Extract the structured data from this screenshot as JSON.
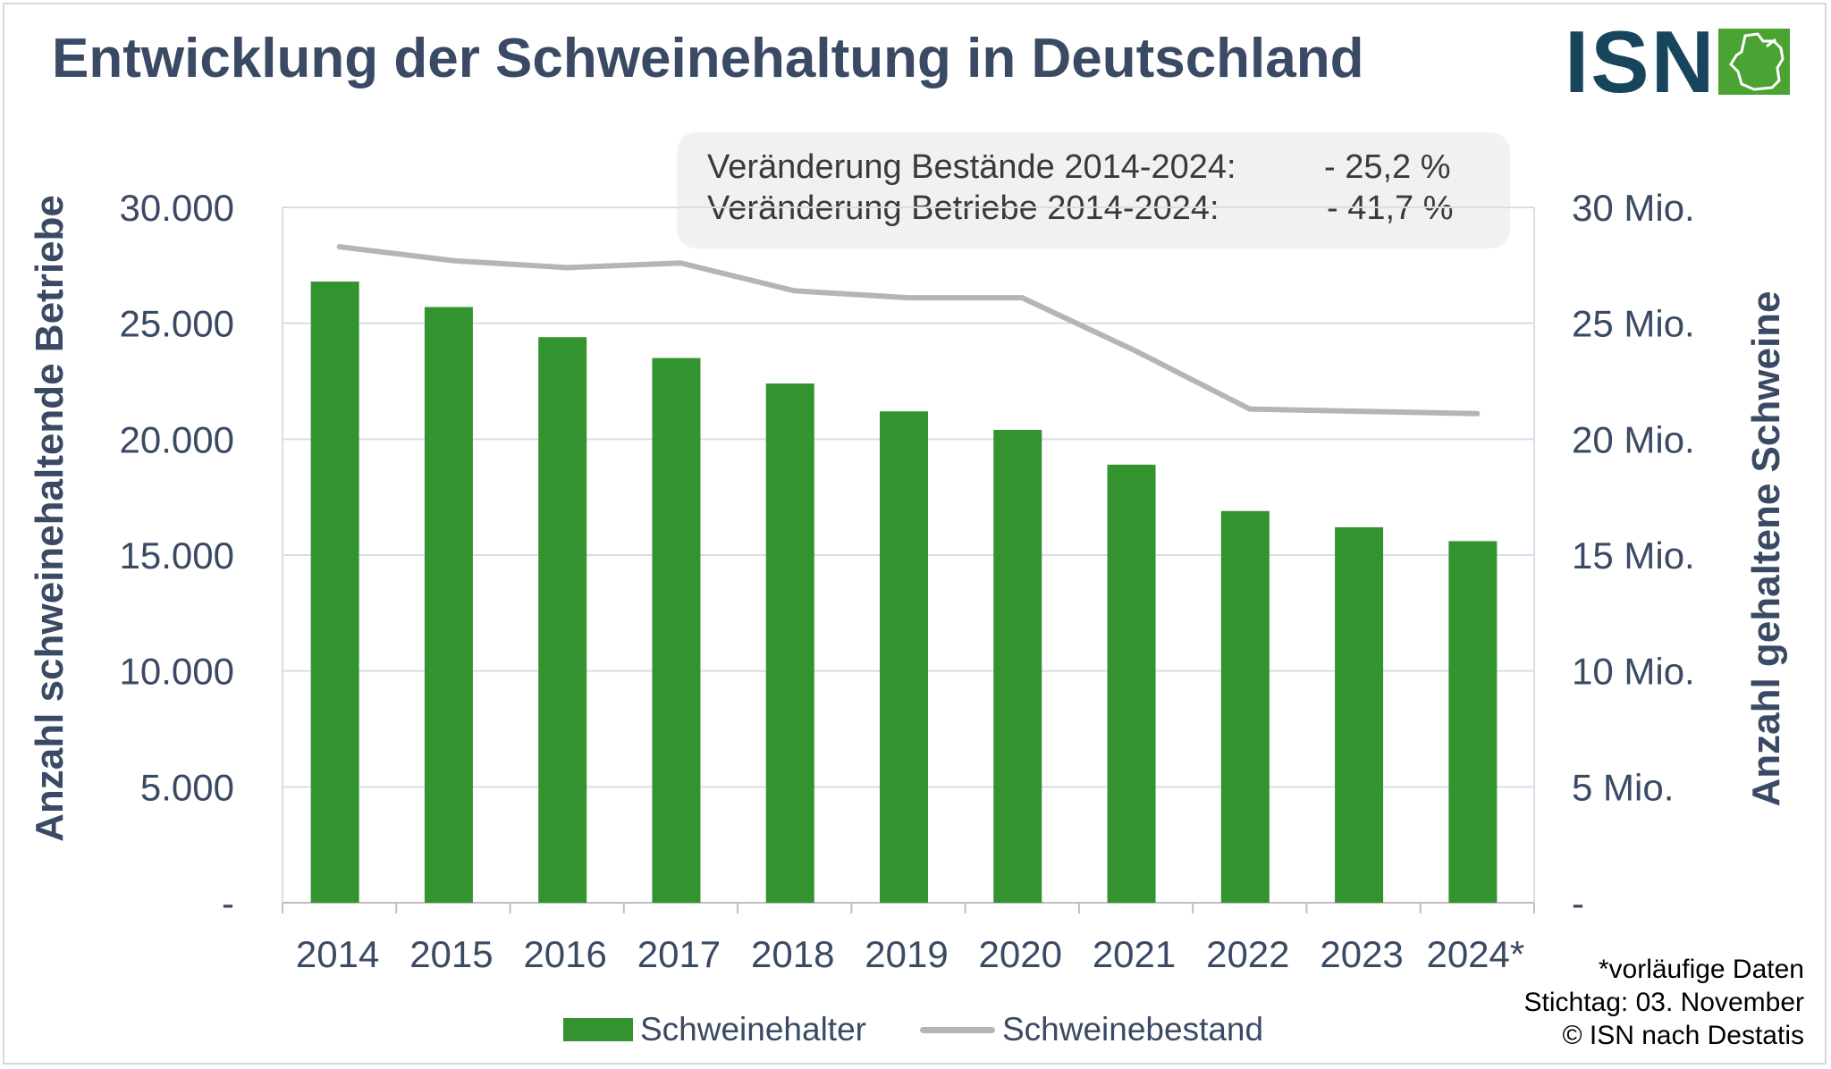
{
  "title": "Entwicklung der Schweinehaltung in Deutschland",
  "logo": {
    "text": "ISN",
    "icon": "pig-head-icon",
    "color": "#17465c",
    "mark_color": "#4aa332"
  },
  "info": [
    {
      "label": "Veränderung Bestände 2014-2024:",
      "value": "- 25,2 %"
    },
    {
      "label": "Veränderung Betriebe   2014-2024:",
      "value": "- 41,7 %"
    }
  ],
  "footnotes": [
    "*vorläufige Daten",
    "Stichtag: 03. November",
    "© ISN nach Destatis"
  ],
  "colors": {
    "bar": "#33932f",
    "line": "#b7b4b4",
    "text": "#3b4a64",
    "grid": "#d9dde8"
  },
  "chart_data": {
    "type": "bar",
    "categories": [
      "2014",
      "2015",
      "2016",
      "2017",
      "2018",
      "2019",
      "2020",
      "2021",
      "2022",
      "2023",
      "2024*"
    ],
    "series": [
      {
        "name": "Schweinehalter",
        "type": "bar",
        "axis": "left",
        "values": [
          26800,
          25700,
          24400,
          23500,
          22400,
          21200,
          20400,
          18900,
          16900,
          16200,
          15600
        ]
      },
      {
        "name": "Schweinebestand",
        "type": "line",
        "axis": "right",
        "values": [
          28.3,
          27.7,
          27.4,
          27.6,
          26.4,
          26.1,
          26.1,
          23.8,
          21.3,
          21.2,
          21.1
        ]
      }
    ],
    "y_left": {
      "label": "Anzahl schweinehaltende Betriebe",
      "ylim": [
        0,
        30000
      ],
      "ticks": [
        "-",
        "5.000",
        "10.000",
        "15.000",
        "20.000",
        "25.000",
        "30.000"
      ]
    },
    "y_right": {
      "label": "Anzahl gehaltene Schweine",
      "ylim": [
        0,
        30
      ],
      "ticks": [
        "-",
        "5 Mio.",
        "10 Mio.",
        "15 Mio.",
        "20 Mio.",
        "25 Mio.",
        "30 Mio."
      ]
    },
    "grid": true,
    "legend": "bottom"
  }
}
